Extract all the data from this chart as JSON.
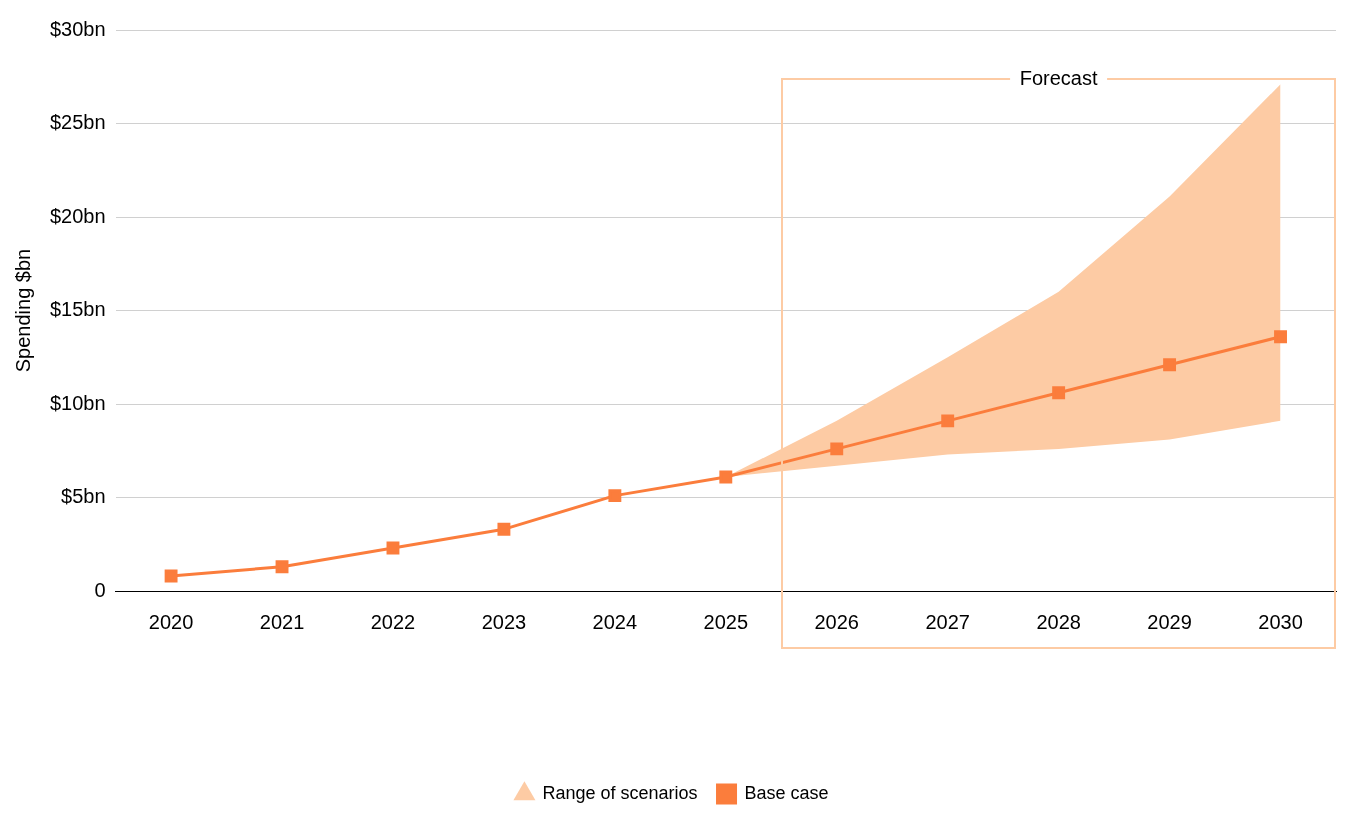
{
  "chart_data": {
    "type": "line",
    "ylabel": "Spending $bn",
    "categories": [
      "2020",
      "2021",
      "2022",
      "2023",
      "2024",
      "2025",
      "2026",
      "2027",
      "2028",
      "2029",
      "2030"
    ],
    "series": [
      {
        "name": "Range of scenarios",
        "type": "area",
        "color": "#fdcba4",
        "values": [
          null,
          null,
          null,
          null,
          null,
          null,
          null,
          null,
          null,
          null,
          null
        ],
        "lower": [
          null,
          null,
          null,
          null,
          null,
          6.1,
          6.7,
          7.3,
          7.6,
          8.1,
          9.1
        ],
        "upper": [
          null,
          null,
          null,
          null,
          null,
          6.1,
          9.1,
          12.5,
          16.0,
          21.1,
          27.1
        ]
      },
      {
        "name": "Base case",
        "type": "line",
        "color": "#fb7d3c",
        "marker": "square",
        "values": [
          0.8,
          1.3,
          2.3,
          3.3,
          5.1,
          6.1,
          7.6,
          9.1,
          10.6,
          12.1,
          13.6
        ]
      }
    ],
    "ylim": [
      0,
      30
    ],
    "yticks": [
      0,
      {
        "value": 5,
        "label": "$5bn"
      },
      {
        "value": 10,
        "label": "$10bn"
      },
      {
        "value": 15,
        "label": "$15bn"
      },
      {
        "value": 20,
        "label": "$20bn"
      },
      {
        "value": 25,
        "label": "$25bn"
      },
      {
        "value": 30,
        "label": "$30bn"
      }
    ],
    "annotations": [
      "Forecast"
    ],
    "grid": "y",
    "legend": "bottom",
    "line_style": "solid"
  }
}
